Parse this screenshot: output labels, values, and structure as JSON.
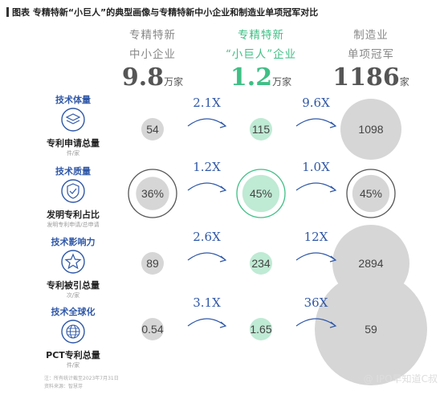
{
  "title": "图表 专精特新“小巨人”的典型画像与专精特新中小企业和制造业单项冠军对比",
  "columns": [
    {
      "line1": "专精特新",
      "line2": "中小企业",
      "count": "9.8",
      "unit": "万家"
    },
    {
      "line1": "专精特新",
      "line2": "“小巨人”企业",
      "count": "1.2",
      "unit": "万家"
    },
    {
      "line1": "制造业",
      "line2": "单项冠军",
      "count": "1186",
      "unit": "家"
    }
  ],
  "colors": {
    "gray_circle": "#d6d6d6",
    "green_circle": "#bfead4",
    "arrow": "#2f58a8",
    "category": "#2f58a8",
    "green_text": "#3fbf85"
  },
  "rows": [
    {
      "category": "技术体量",
      "icon": "layers-icon",
      "metric": "专利申请总量",
      "metric_sub": "件/家"
    },
    {
      "category": "技术质量",
      "icon": "shield-check-icon",
      "metric": "发明专利占比",
      "metric_sub": "发明专利申请/总申请"
    },
    {
      "category": "技术影响力",
      "icon": "star-icon",
      "metric": "专利被引总量",
      "metric_sub": "次/家"
    },
    {
      "category": "技术全球化",
      "icon": "globe-icon",
      "metric": "PCT专利总量",
      "metric_sub": "件/家"
    }
  ],
  "chart_data": {
    "type": "bubble-comparison",
    "title": "专精特新“小巨人”的典型画像与专精特新中小企业和制造业单项冠军对比",
    "groups": [
      "专精特新中小企业",
      "专精特新“小巨人”企业",
      "制造业单项冠军"
    ],
    "series": [
      {
        "name": "专利申请总量",
        "values": [
          "54",
          "115",
          "1098"
        ],
        "multipliers": [
          "2.1X",
          "9.6X"
        ]
      },
      {
        "name": "发明专利占比",
        "values": [
          "36%",
          "45%",
          "45%"
        ],
        "multipliers": [
          "1.2X",
          "1.0X"
        ]
      },
      {
        "name": "专利被引总量",
        "values": [
          "89",
          "234",
          "2894"
        ],
        "multipliers": [
          "2.6X",
          "12X"
        ]
      },
      {
        "name": "PCT专利总量",
        "values": [
          "0.54",
          "1.65",
          "59"
        ],
        "multipliers": [
          "3.1X",
          "36X"
        ]
      }
    ]
  },
  "footer": {
    "line1": "注：所有统计截至2023年7月31日",
    "line2": "资料来源：智慧芽"
  },
  "watermark": "@ IPO早知道C叔"
}
